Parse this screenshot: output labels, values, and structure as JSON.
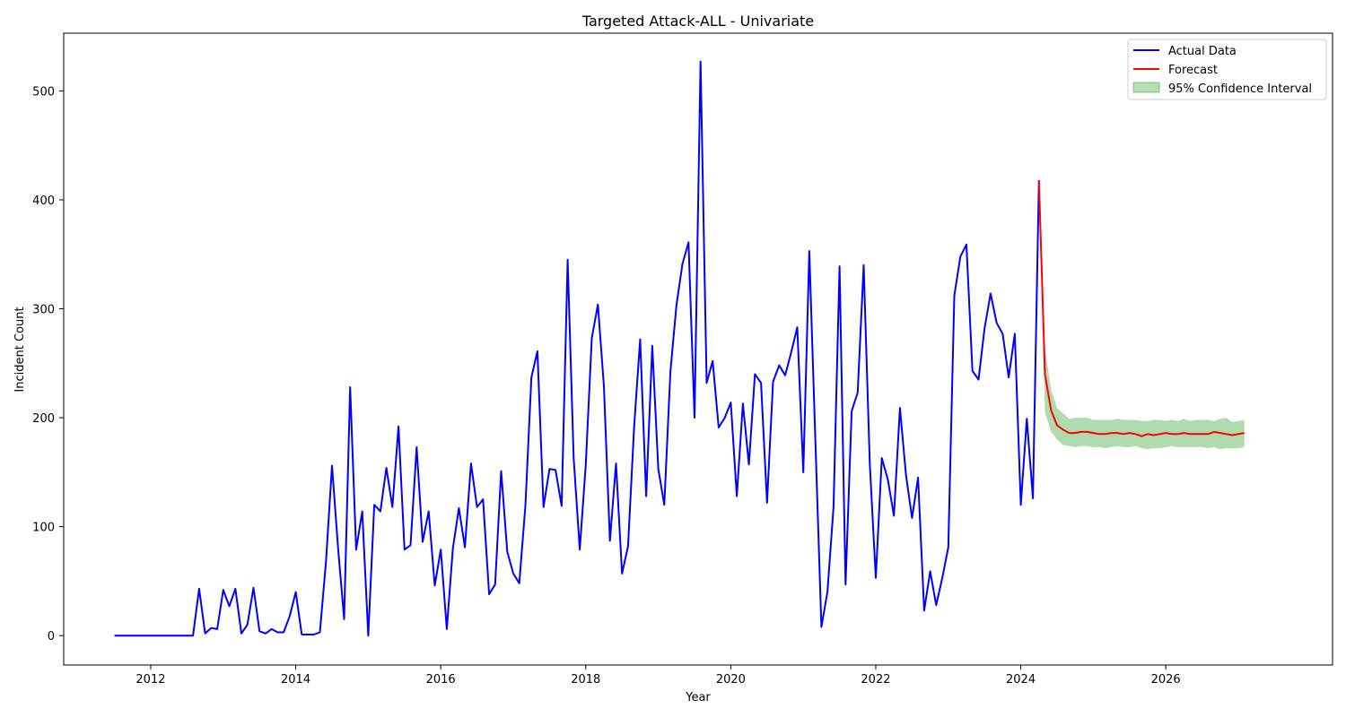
{
  "chart_data": {
    "type": "line",
    "title": "Targeted Attack-ALL - Univariate",
    "xlabel": "Year",
    "ylabel": "Incident Count",
    "xlim": [
      2010.8,
      2028.3
    ],
    "ylim": [
      -27,
      553
    ],
    "x_ticks": [
      2012,
      2014,
      2016,
      2018,
      2020,
      2022,
      2024,
      2026
    ],
    "y_ticks": [
      0,
      100,
      200,
      300,
      400,
      500
    ],
    "grid": false,
    "legend_position": "top-right",
    "legend": [
      {
        "label": "Actual Data",
        "kind": "line",
        "color": "#0000ff"
      },
      {
        "label": "Forecast",
        "kind": "line",
        "color": "#ff0000"
      },
      {
        "label": "95% Confidence Interval",
        "kind": "patch",
        "color": "#2ca02c"
      }
    ],
    "series": [
      {
        "name": "Actual Data",
        "color": "#0000ff",
        "x": [
          2011.5,
          2011.583,
          2011.667,
          2011.75,
          2011.833,
          2011.917,
          2012,
          2012.083,
          2012.167,
          2012.25,
          2012.333,
          2012.417,
          2012.5,
          2012.583,
          2012.667,
          2012.75,
          2012.833,
          2012.917,
          2013,
          2013.083,
          2013.167,
          2013.25,
          2013.333,
          2013.417,
          2013.5,
          2013.583,
          2013.667,
          2013.75,
          2013.833,
          2013.917,
          2014,
          2014.083,
          2014.167,
          2014.25,
          2014.333,
          2014.417,
          2014.5,
          2014.583,
          2014.667,
          2014.75,
          2014.833,
          2014.917,
          2015,
          2015.083,
          2015.167,
          2015.25,
          2015.333,
          2015.417,
          2015.5,
          2015.583,
          2015.667,
          2015.75,
          2015.833,
          2015.917,
          2016,
          2016.083,
          2016.167,
          2016.25,
          2016.333,
          2016.417,
          2016.5,
          2016.583,
          2016.667,
          2016.75,
          2016.833,
          2016.917,
          2017,
          2017.083,
          2017.167,
          2017.25,
          2017.333,
          2017.417,
          2017.5,
          2017.583,
          2017.667,
          2017.75,
          2017.833,
          2017.917,
          2018,
          2018.083,
          2018.167,
          2018.25,
          2018.333,
          2018.417,
          2018.5,
          2018.583,
          2018.667,
          2018.75,
          2018.833,
          2018.917,
          2019,
          2019.083,
          2019.167,
          2019.25,
          2019.333,
          2019.417,
          2019.5,
          2019.583,
          2019.667,
          2019.75,
          2019.833,
          2019.917,
          2020,
          2020.083,
          2020.167,
          2020.25,
          2020.333,
          2020.417,
          2020.5,
          2020.583,
          2020.667,
          2020.75,
          2020.833,
          2020.917,
          2021,
          2021.083,
          2021.167,
          2021.25,
          2021.333,
          2021.417,
          2021.5,
          2021.583,
          2021.667,
          2021.75,
          2021.833,
          2021.917,
          2022,
          2022.083,
          2022.167,
          2022.25,
          2022.333,
          2022.417,
          2022.5,
          2022.583,
          2022.667,
          2022.75,
          2022.833,
          2022.917,
          2023,
          2023.083,
          2023.167,
          2023.25,
          2023.333,
          2023.417,
          2023.5,
          2023.583,
          2023.667,
          2023.75,
          2023.833,
          2023.917,
          2024,
          2024.083,
          2024.167,
          2024.25
        ],
        "y": [
          0,
          0,
          0,
          0,
          0,
          0,
          0,
          0,
          0,
          0,
          0,
          0,
          0,
          0,
          43,
          2,
          7,
          6,
          42,
          27,
          43,
          2,
          10,
          44,
          4,
          2,
          6,
          3,
          3,
          18,
          40,
          1,
          1,
          1,
          3,
          68,
          156,
          81,
          15,
          228,
          79,
          114,
          0,
          120,
          114,
          154,
          118,
          192,
          79,
          83,
          173,
          86,
          114,
          46,
          79,
          6,
          80,
          117,
          81,
          158,
          118,
          125,
          38,
          47,
          151,
          77,
          57,
          48,
          119,
          237,
          261,
          118,
          153,
          152,
          119,
          345,
          163,
          79,
          157,
          273,
          304,
          229,
          87,
          158,
          57,
          82,
          192,
          272,
          128,
          266,
          153,
          120,
          242,
          303,
          341,
          361,
          200,
          527,
          232,
          252,
          191,
          200,
          214,
          128,
          213,
          157,
          240,
          232,
          122,
          233,
          248,
          239,
          260,
          283,
          150,
          353,
          178,
          8,
          40,
          118,
          339,
          47,
          206,
          223,
          340,
          158,
          53,
          163,
          143,
          110,
          209,
          147,
          108,
          145,
          23,
          59,
          28,
          53,
          81,
          312,
          348,
          359,
          243,
          235,
          282,
          314,
          287,
          277,
          237,
          277,
          120,
          199,
          126,
          418
        ]
      },
      {
        "name": "Forecast",
        "color": "#ff0000",
        "x": [
          2024.25,
          2024.333,
          2024.417,
          2024.5,
          2024.583,
          2024.667,
          2024.75,
          2024.833,
          2024.917,
          2025,
          2025.083,
          2025.167,
          2025.25,
          2025.333,
          2025.417,
          2025.5,
          2025.583,
          2025.667,
          2025.75,
          2025.833,
          2025.917,
          2026,
          2026.083,
          2026.167,
          2026.25,
          2026.333,
          2026.417,
          2026.5,
          2026.583,
          2026.667,
          2026.75,
          2026.833,
          2026.917,
          2027,
          2027.083
        ],
        "y": [
          418,
          240,
          207,
          193,
          189,
          186,
          186,
          187,
          187,
          186,
          185,
          185,
          186,
          186,
          185,
          186,
          185,
          183,
          185,
          184,
          185,
          186,
          185,
          185,
          186,
          185,
          185,
          185,
          185,
          187,
          186,
          185,
          184,
          185,
          186
        ]
      }
    ],
    "confidence_interval": {
      "name": "95% Confidence Interval",
      "color": "#2ca02c",
      "x": [
        2024.25,
        2024.333,
        2024.417,
        2024.5,
        2024.583,
        2024.667,
        2024.75,
        2024.833,
        2024.917,
        2025,
        2025.083,
        2025.167,
        2025.25,
        2025.333,
        2025.417,
        2025.5,
        2025.583,
        2025.667,
        2025.75,
        2025.833,
        2025.917,
        2026,
        2026.083,
        2026.167,
        2026.25,
        2026.333,
        2026.417,
        2026.5,
        2026.583,
        2026.667,
        2026.75,
        2026.833,
        2026.917,
        2027,
        2027.083
      ],
      "lower": [
        418,
        205,
        187,
        180,
        175,
        174,
        173,
        174,
        174,
        173,
        173,
        172,
        173,
        174,
        173,
        173,
        174,
        172,
        171,
        172,
        172,
        173,
        174,
        173,
        173,
        173,
        173,
        173,
        172,
        173,
        171,
        172,
        172,
        172,
        173
      ],
      "upper": [
        418,
        264,
        226,
        209,
        204,
        199,
        200,
        200,
        200,
        198,
        198,
        198,
        198,
        199,
        198,
        198,
        198,
        197,
        197,
        198,
        198,
        197,
        198,
        197,
        199,
        197,
        198,
        198,
        198,
        197,
        199,
        200,
        196,
        197,
        198
      ]
    }
  }
}
